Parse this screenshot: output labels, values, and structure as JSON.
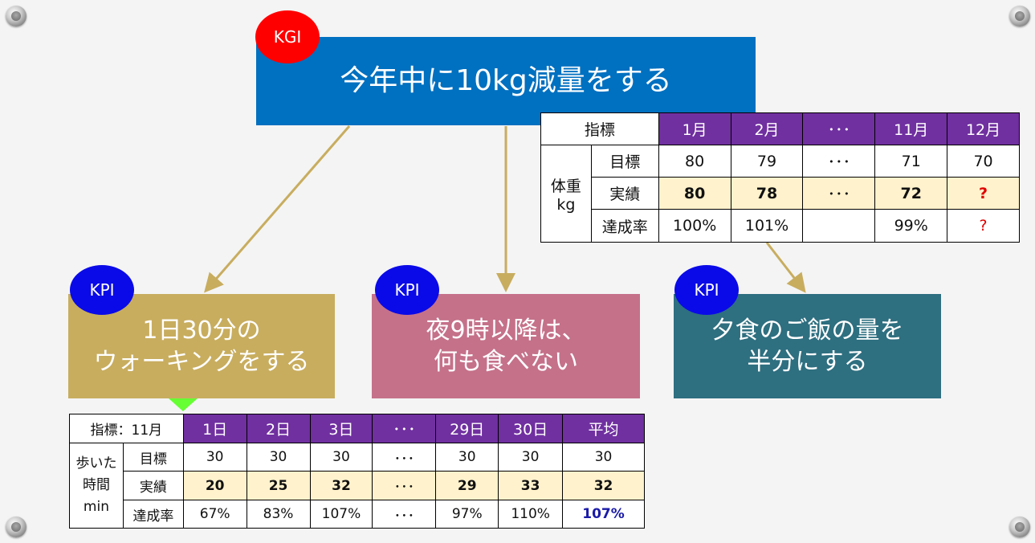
{
  "kgi": {
    "badge": "KGI",
    "title": "今年中に10kg減量をする",
    "color": "#0070C0",
    "badge_color": "#FF0000"
  },
  "kpis": [
    {
      "badge": "KPI",
      "line1": "1日30分の",
      "line2": "ウォーキングをする",
      "color": "#C8AD5F"
    },
    {
      "badge": "KPI",
      "line1": "夜9時以降は、",
      "line2": "何も食べない",
      "color": "#C5718A"
    },
    {
      "badge": "KPI",
      "line1": "夕食のご飯の量を",
      "line2": "半分にする",
      "color": "#2E6F80"
    }
  ],
  "weight_table": {
    "corner": "指標",
    "columns": [
      "1月",
      "2月",
      "･･･",
      "11月",
      "12月"
    ],
    "group_label1": "体重",
    "group_label2": "kg",
    "rows": [
      {
        "label": "目標",
        "values": [
          "80",
          "79",
          "･･･",
          "71",
          "70"
        ]
      },
      {
        "label": "実績",
        "values": [
          "80",
          "78",
          "･･･",
          "72",
          "?"
        ]
      },
      {
        "label": "達成率",
        "values": [
          "100%",
          "101%",
          "",
          "99%",
          "?"
        ]
      }
    ]
  },
  "walk_table": {
    "corner": "指標：11月",
    "columns": [
      "1日",
      "2日",
      "3日",
      "･･･",
      "29日",
      "30日",
      "平均"
    ],
    "group_label1": "歩いた",
    "group_label2": "時間",
    "group_label3": "min",
    "rows": [
      {
        "label": "目標",
        "values": [
          "30",
          "30",
          "30",
          "･･･",
          "30",
          "30",
          "30"
        ]
      },
      {
        "label": "実績",
        "values": [
          "20",
          "25",
          "32",
          "･･･",
          "29",
          "33",
          "32"
        ]
      },
      {
        "label": "達成率",
        "values": [
          "67%",
          "83%",
          "107%",
          "･･･",
          "97%",
          "110%",
          "107%"
        ]
      }
    ]
  },
  "colors": {
    "header": "#7030A0",
    "actual_row": "#FFF2CC",
    "arrow": "#C8AD5F",
    "green_arrow": "#66FF33",
    "kpi_badge": "#0A0AE8"
  }
}
